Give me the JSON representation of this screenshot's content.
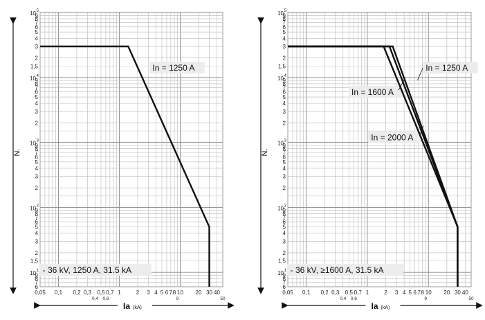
{
  "chart_data": [
    {
      "type": "line",
      "x_scale": "log",
      "y_scale": "log",
      "xlim": [
        0.05,
        50
      ],
      "ylim": [
        6,
        100000
      ],
      "grid": true,
      "ylabel": "N.",
      "xlabel": "Ia",
      "xlabel_unit": "(kA)",
      "x_ticks_major": [
        {
          "v": 0.05,
          "t": "0,05"
        },
        {
          "v": 0.1,
          "t": "0,1"
        },
        {
          "v": 0.2,
          "t": "0,2"
        },
        {
          "v": 0.3,
          "t": "0,3"
        },
        {
          "v": 0.5,
          "t": "0,5"
        },
        {
          "v": 0.7,
          "t": "0,7"
        },
        {
          "v": 1,
          "t": "1"
        },
        {
          "v": 2,
          "t": "2"
        },
        {
          "v": 3,
          "t": "3"
        },
        {
          "v": 4,
          "t": "4"
        },
        {
          "v": 5,
          "t": "5"
        },
        {
          "v": 6,
          "t": "6"
        },
        {
          "v": 7,
          "t": "7"
        },
        {
          "v": 8,
          "t": "8"
        },
        {
          "v": 10,
          "t": "10"
        },
        {
          "v": 20,
          "t": "20"
        },
        {
          "v": 30,
          "t": "30"
        },
        {
          "v": 40,
          "t": "40"
        }
      ],
      "x_ticks_minor": [
        {
          "v": 0.4,
          "t": "0,4"
        },
        {
          "v": 0.6,
          "t": "0,6"
        },
        {
          "v": 9,
          "t": "9"
        },
        {
          "v": 50,
          "t": "50"
        }
      ],
      "y_ticks": [
        {
          "v": 6,
          "t": "6"
        },
        {
          "v": 7,
          "t": "7"
        },
        {
          "v": 8,
          "t": "8"
        },
        {
          "v": 9,
          "t": "9"
        },
        {
          "v": 15,
          "t": "1,5"
        },
        {
          "v": 20,
          "t": "2"
        },
        {
          "v": 30,
          "t": "3"
        },
        {
          "v": 40,
          "t": "4"
        },
        {
          "v": 50,
          "t": "5"
        },
        {
          "v": 60,
          "t": "6"
        },
        {
          "v": 70,
          "t": "7"
        },
        {
          "v": 80,
          "t": "8"
        },
        {
          "v": 90,
          "t": "9"
        },
        {
          "v": 200,
          "t": "2"
        },
        {
          "v": 300,
          "t": "3"
        },
        {
          "v": 400,
          "t": "4"
        },
        {
          "v": 500,
          "t": "5"
        },
        {
          "v": 600,
          "t": "6"
        },
        {
          "v": 700,
          "t": "7"
        },
        {
          "v": 800,
          "t": "8"
        },
        {
          "v": 900,
          "t": "9"
        },
        {
          "v": 2000,
          "t": "2"
        },
        {
          "v": 3000,
          "t": "3"
        },
        {
          "v": 4000,
          "t": "4"
        },
        {
          "v": 5000,
          "t": "5"
        },
        {
          "v": 6000,
          "t": "6"
        },
        {
          "v": 7000,
          "t": "7"
        },
        {
          "v": 8000,
          "t": "8"
        },
        {
          "v": 9000,
          "t": "9"
        },
        {
          "v": 15000,
          "t": "1,5"
        },
        {
          "v": 20000,
          "t": "2"
        },
        {
          "v": 30000,
          "t": "3"
        },
        {
          "v": 40000,
          "t": "4"
        },
        {
          "v": 50000,
          "t": "5"
        },
        {
          "v": 60000,
          "t": "6"
        },
        {
          "v": 70000,
          "t": "7"
        },
        {
          "v": 80000,
          "t": "8"
        },
        {
          "v": 90000,
          "t": "9"
        }
      ],
      "y_decades": [
        {
          "v": 10,
          "base": "10",
          "exp": "1"
        },
        {
          "v": 100,
          "base": "10",
          "exp": "2"
        },
        {
          "v": 1000,
          "base": "10",
          "exp": "3"
        },
        {
          "v": 10000,
          "base": "10",
          "exp": "4"
        },
        {
          "v": 100000,
          "base": "10",
          "exp": "5"
        }
      ],
      "series": [
        {
          "name": "In = 1250 A",
          "x": [
            0.05,
            1.4,
            30,
            30
          ],
          "y": [
            30000,
            30000,
            50,
            6
          ]
        }
      ],
      "annotations": [
        {
          "text": "In = 1250 A",
          "x": 3.5,
          "y": 13000
        },
        {
          "text": "- 36 kV, 1250 A, 31.5 kA",
          "x": 0.055,
          "y": 10
        }
      ]
    },
    {
      "type": "line",
      "x_scale": "log",
      "y_scale": "log",
      "xlim": [
        0.05,
        50
      ],
      "ylim": [
        6,
        100000
      ],
      "grid": true,
      "ylabel": "N.",
      "xlabel": "Ia",
      "xlabel_unit": "(kA)",
      "x_ticks_major": [
        {
          "v": 0.05,
          "t": "0,05"
        },
        {
          "v": 0.1,
          "t": "0,1"
        },
        {
          "v": 0.2,
          "t": "0,2"
        },
        {
          "v": 0.3,
          "t": "0,3"
        },
        {
          "v": 0.5,
          "t": "0,5"
        },
        {
          "v": 0.7,
          "t": "0,7"
        },
        {
          "v": 1,
          "t": "1"
        },
        {
          "v": 2,
          "t": "2"
        },
        {
          "v": 3,
          "t": "3"
        },
        {
          "v": 4,
          "t": "4"
        },
        {
          "v": 5,
          "t": "5"
        },
        {
          "v": 6,
          "t": "6"
        },
        {
          "v": 7,
          "t": "7"
        },
        {
          "v": 8,
          "t": "8"
        },
        {
          "v": 10,
          "t": "10"
        },
        {
          "v": 20,
          "t": "20"
        },
        {
          "v": 30,
          "t": "30"
        },
        {
          "v": 40,
          "t": "40"
        }
      ],
      "x_ticks_minor": [
        {
          "v": 0.4,
          "t": "0,4"
        },
        {
          "v": 0.6,
          "t": "0,6"
        },
        {
          "v": 9,
          "t": "9"
        },
        {
          "v": 50,
          "t": "50"
        }
      ],
      "y_ticks": [
        {
          "v": 6,
          "t": "6"
        },
        {
          "v": 7,
          "t": "7"
        },
        {
          "v": 8,
          "t": "8"
        },
        {
          "v": 9,
          "t": "9"
        },
        {
          "v": 15,
          "t": "1,5"
        },
        {
          "v": 20,
          "t": "2"
        },
        {
          "v": 30,
          "t": "3"
        },
        {
          "v": 40,
          "t": "4"
        },
        {
          "v": 50,
          "t": "5"
        },
        {
          "v": 60,
          "t": "6"
        },
        {
          "v": 70,
          "t": "7"
        },
        {
          "v": 80,
          "t": "8"
        },
        {
          "v": 90,
          "t": "9"
        },
        {
          "v": 200,
          "t": "2"
        },
        {
          "v": 300,
          "t": "3"
        },
        {
          "v": 400,
          "t": "4"
        },
        {
          "v": 500,
          "t": "5"
        },
        {
          "v": 600,
          "t": "6"
        },
        {
          "v": 700,
          "t": "7"
        },
        {
          "v": 800,
          "t": "8"
        },
        {
          "v": 900,
          "t": "9"
        },
        {
          "v": 2000,
          "t": "2"
        },
        {
          "v": 3000,
          "t": "3"
        },
        {
          "v": 4000,
          "t": "4"
        },
        {
          "v": 5000,
          "t": "5"
        },
        {
          "v": 6000,
          "t": "6"
        },
        {
          "v": 7000,
          "t": "7"
        },
        {
          "v": 8000,
          "t": "8"
        },
        {
          "v": 9000,
          "t": "9"
        },
        {
          "v": 15000,
          "t": "1,5"
        },
        {
          "v": 20000,
          "t": "2"
        },
        {
          "v": 30000,
          "t": "3"
        },
        {
          "v": 40000,
          "t": "4"
        },
        {
          "v": 50000,
          "t": "5"
        },
        {
          "v": 60000,
          "t": "6"
        },
        {
          "v": 70000,
          "t": "7"
        },
        {
          "v": 80000,
          "t": "8"
        },
        {
          "v": 90000,
          "t": "9"
        }
      ],
      "y_decades": [
        {
          "v": 10,
          "base": "10",
          "exp": "1"
        },
        {
          "v": 100,
          "base": "10",
          "exp": "2"
        },
        {
          "v": 1000,
          "base": "10",
          "exp": "3"
        },
        {
          "v": 10000,
          "base": "10",
          "exp": "4"
        },
        {
          "v": 100000,
          "base": "10",
          "exp": "5"
        }
      ],
      "series": [
        {
          "name": "In = 1250 A",
          "x": [
            0.05,
            2.6,
            30,
            30
          ],
          "y": [
            30000,
            30000,
            50,
            6
          ]
        },
        {
          "name": "In = 1600 A",
          "x": [
            0.05,
            2.3,
            30,
            30
          ],
          "y": [
            30000,
            30000,
            50,
            6
          ]
        },
        {
          "name": "In = 2000 A",
          "x": [
            0.05,
            1.85,
            30,
            30
          ],
          "y": [
            30000,
            30000,
            50,
            6
          ]
        }
      ],
      "annotations": [
        {
          "text": "In = 1250 A",
          "x": 9,
          "y": 13000
        },
        {
          "text": "In = 1600 A",
          "x": 0.55,
          "y": 5500
        },
        {
          "text": "In = 2000 A",
          "x": 1.15,
          "y": 1100
        },
        {
          "text": "- 36 kV, ≥1600 A, 31.5 kA",
          "x": 0.055,
          "y": 10
        }
      ]
    }
  ]
}
